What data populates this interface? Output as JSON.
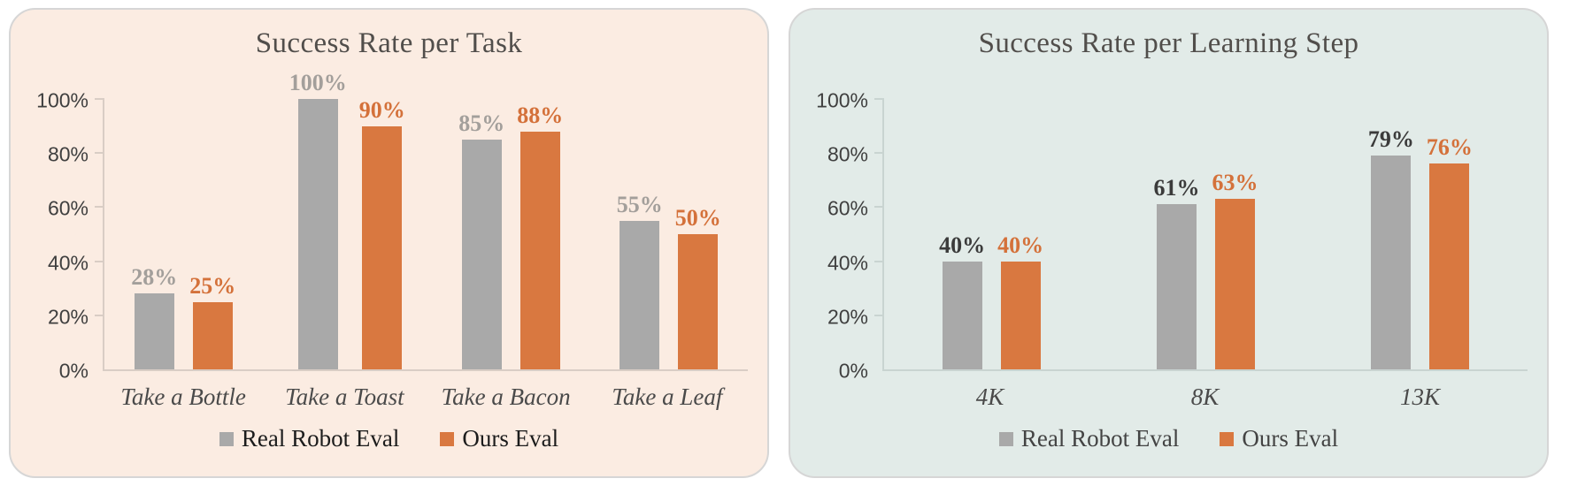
{
  "page": {
    "background": "#ffffff"
  },
  "chart_data": [
    {
      "type": "bar",
      "title": "Success Rate per Task",
      "panel_bg": "#fbece2",
      "axis_color": "#d9cdc5",
      "title_color": "#514e4b",
      "tick_color": "#3f3f3f",
      "category_color": "#4a4a4a",
      "legend_text_color": "#1c1c1c",
      "categories": [
        "Take a Bottle",
        "Take a Toast",
        "Take a Bacon",
        "Take a Leaf"
      ],
      "series": [
        {
          "name": "Real Robot Eval",
          "color": "#a9a9a9",
          "label_color": "#a39f9b",
          "values": [
            28,
            100,
            85,
            55
          ]
        },
        {
          "name": "Ours Eval",
          "color": "#d97840",
          "label_color": "#d4713a",
          "values": [
            25,
            90,
            88,
            50
          ]
        }
      ],
      "yticks": [
        0,
        20,
        40,
        60,
        80,
        100
      ],
      "ytick_suffix": "%",
      "value_suffix": "%",
      "ylim": [
        0,
        100
      ],
      "grid": false,
      "legend_position": "bottom"
    },
    {
      "type": "bar",
      "title": "Success Rate per Learning Step",
      "panel_bg": "#e2ebe8",
      "axis_color": "#c9d4d1",
      "title_color": "#514e4b",
      "tick_color": "#3f3f3f",
      "category_color": "#4a4a4a",
      "legend_text_color": "#434343",
      "categories": [
        "4K",
        "8K",
        "13K"
      ],
      "series": [
        {
          "name": "Real Robot Eval",
          "color": "#a9a9a9",
          "label_color": "#3b3b3b",
          "values": [
            40,
            61,
            79
          ]
        },
        {
          "name": "Ours Eval",
          "color": "#d97840",
          "label_color": "#d4713a",
          "values": [
            40,
            63,
            76
          ]
        }
      ],
      "yticks": [
        0,
        20,
        40,
        60,
        80,
        100
      ],
      "ytick_suffix": "%",
      "value_suffix": "%",
      "ylim": [
        0,
        100
      ],
      "grid": false,
      "legend_position": "bottom"
    }
  ]
}
